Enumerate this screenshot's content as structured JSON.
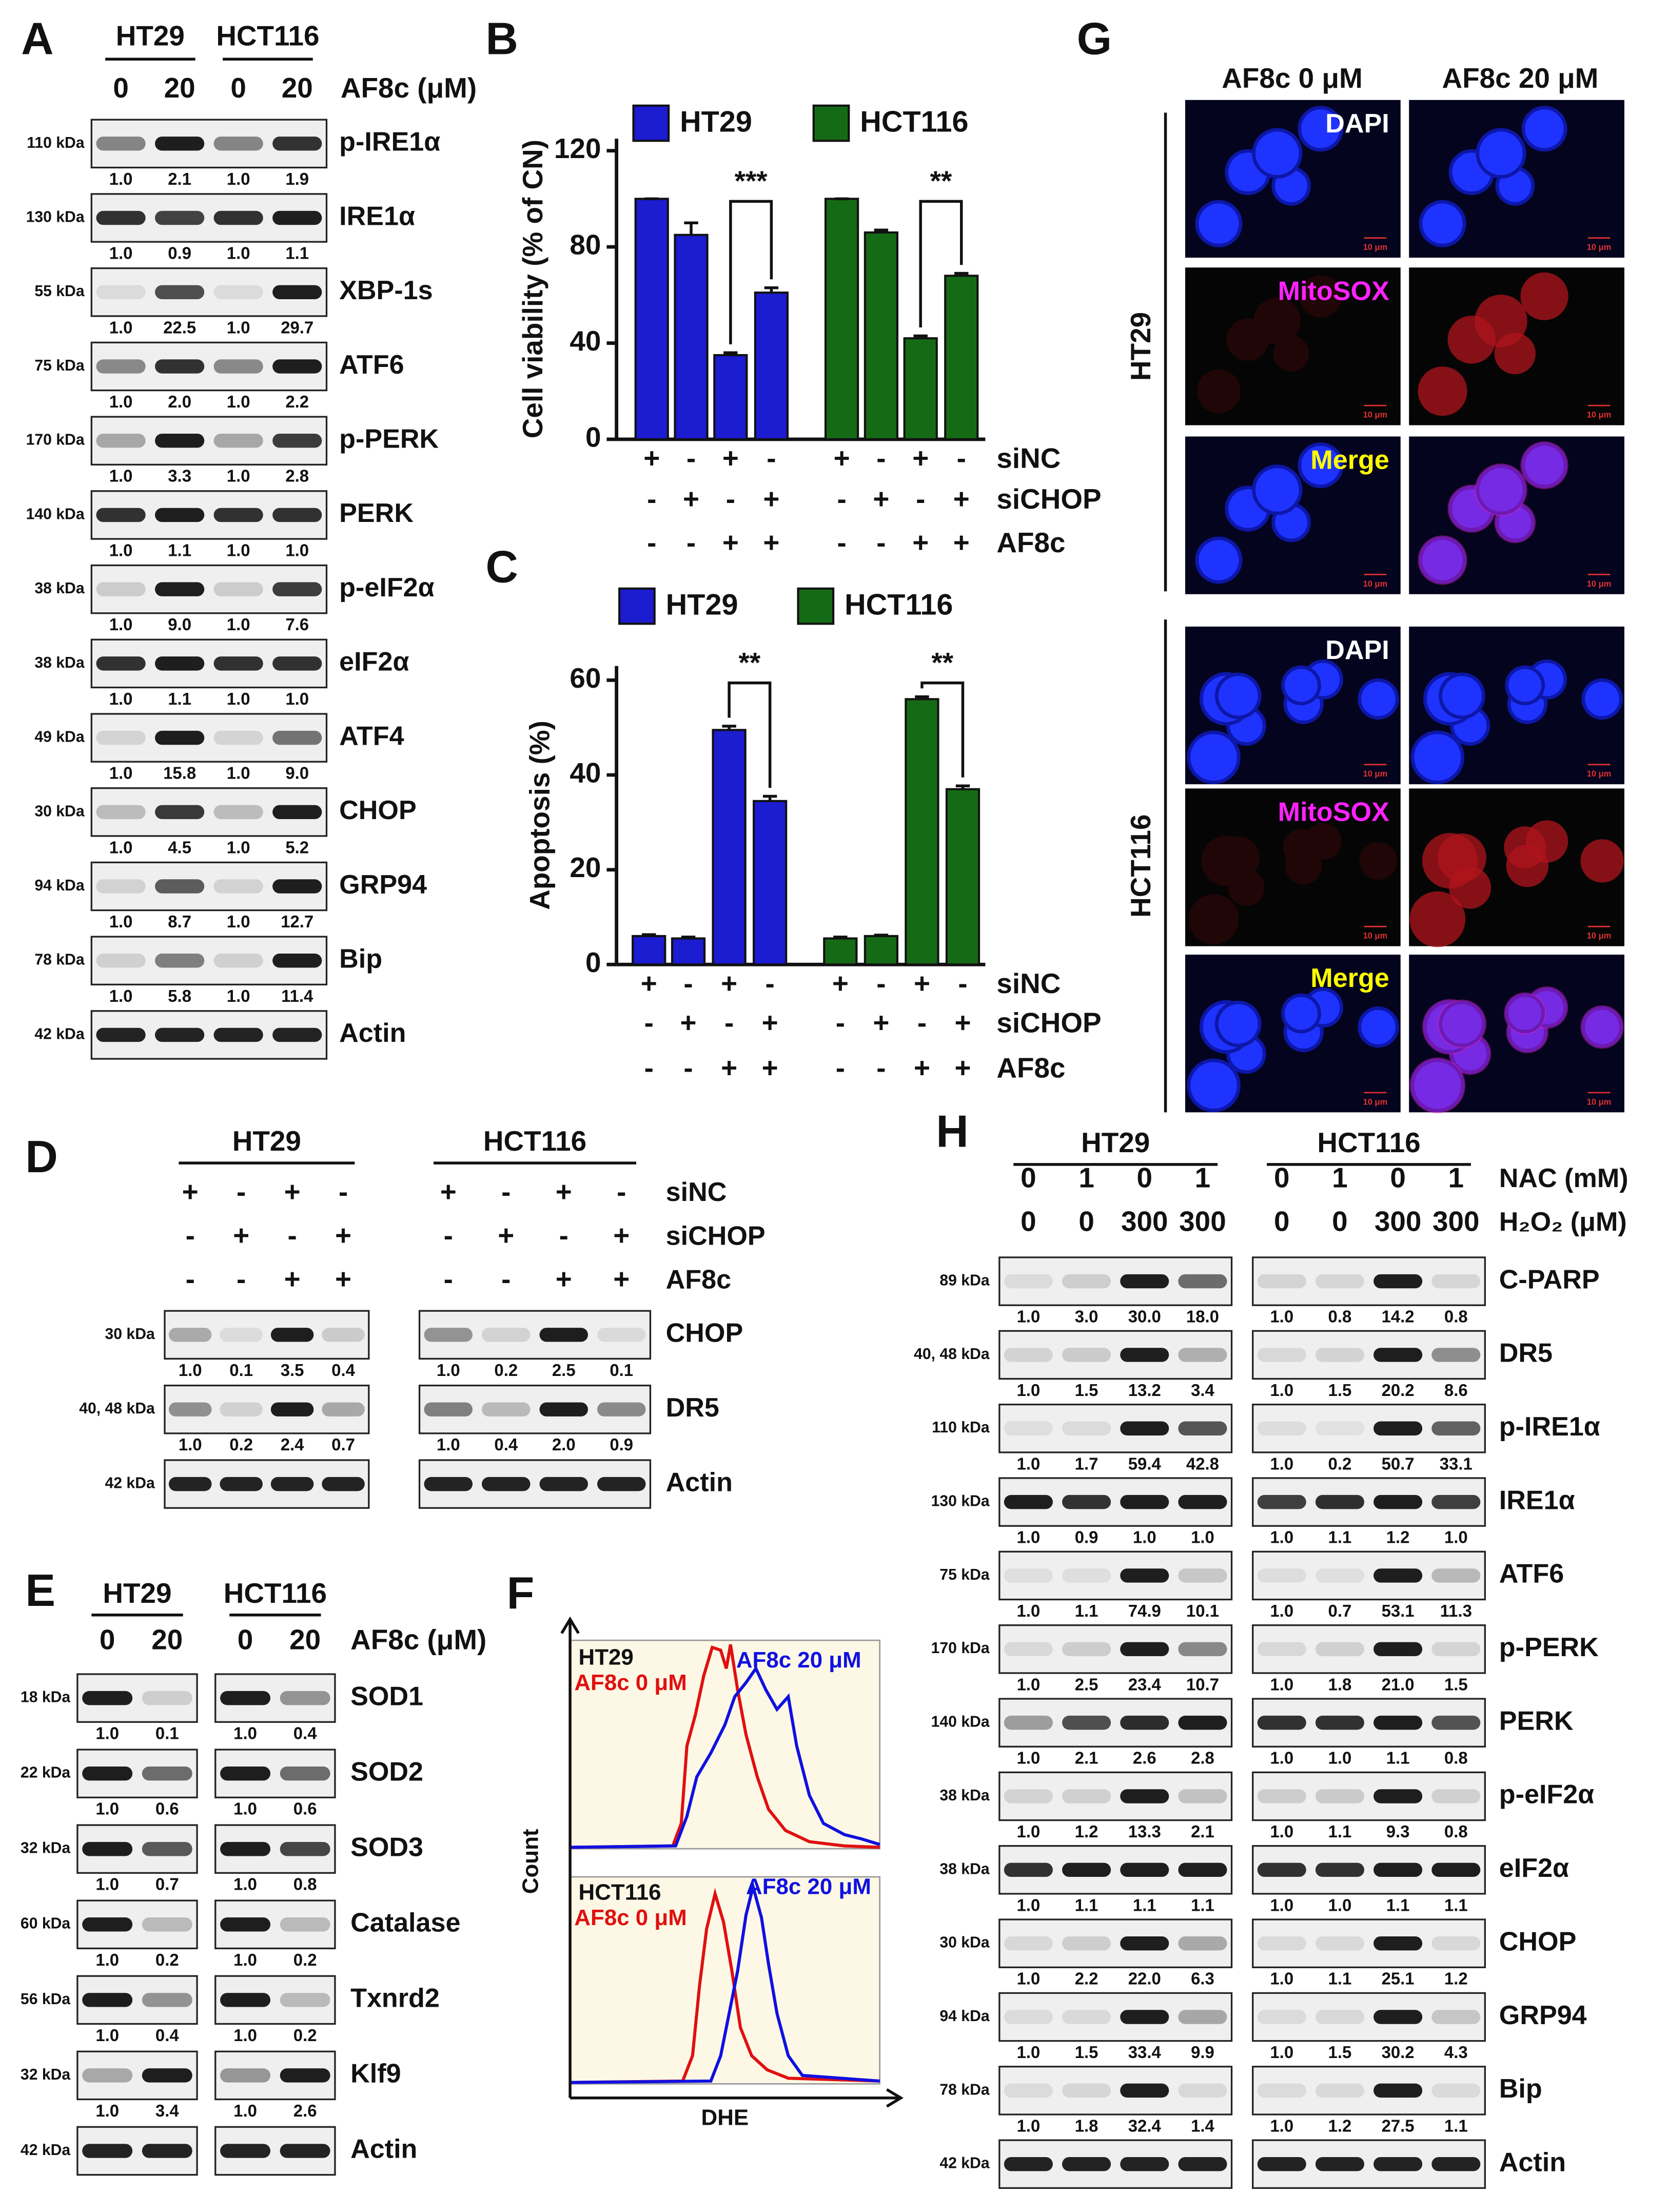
{
  "panel_A": {
    "label": "A",
    "cell_lines": [
      "HT29",
      "HCT116"
    ],
    "treatment": "AF8c (μM)",
    "doses": [
      "0",
      "20",
      "0",
      "20"
    ],
    "rows": [
      {
        "size": "110 kDa",
        "protein": "p-IRE1α",
        "quant": [
          "1.0",
          "2.1",
          "1.0",
          "1.9"
        ]
      },
      {
        "size": "130 kDa",
        "protein": "IRE1α",
        "quant": [
          "1.0",
          "0.9",
          "1.0",
          "1.1"
        ]
      },
      {
        "size": "55 kDa",
        "protein": "XBP-1s",
        "quant": [
          "1.0",
          "22.5",
          "1.0",
          "29.7"
        ]
      },
      {
        "size": "75 kDa",
        "protein": "ATF6",
        "quant": [
          "1.0",
          "2.0",
          "1.0",
          "2.2"
        ]
      },
      {
        "size": "170 kDa",
        "protein": "p-PERK",
        "quant": [
          "1.0",
          "3.3",
          "1.0",
          "2.8"
        ]
      },
      {
        "size": "140 kDa",
        "protein": "PERK",
        "quant": [
          "1.0",
          "1.1",
          "1.0",
          "1.0"
        ]
      },
      {
        "size": "38 kDa",
        "protein": "p-eIF2α",
        "quant": [
          "1.0",
          "9.0",
          "1.0",
          "7.6"
        ]
      },
      {
        "size": "38 kDa",
        "protein": "eIF2α",
        "quant": [
          "1.0",
          "1.1",
          "1.0",
          "1.0"
        ]
      },
      {
        "size": "49 kDa",
        "protein": "ATF4",
        "quant": [
          "1.0",
          "15.8",
          "1.0",
          "9.0"
        ]
      },
      {
        "size": "30 kDa",
        "protein": "CHOP",
        "quant": [
          "1.0",
          "4.5",
          "1.0",
          "5.2"
        ]
      },
      {
        "size": "94 kDa",
        "protein": "GRP94",
        "quant": [
          "1.0",
          "8.7",
          "1.0",
          "12.7"
        ]
      },
      {
        "size": "78 kDa",
        "protein": "Bip",
        "quant": [
          "1.0",
          "5.8",
          "1.0",
          "11.4"
        ]
      },
      {
        "size": "42 kDa",
        "protein": "Actin"
      }
    ]
  },
  "chart_data": [
    {
      "type": "bar",
      "label": "B",
      "y_label": "Cell viability (% of CN)",
      "ylim": [
        0,
        125
      ],
      "yticks": [
        0,
        40,
        80,
        120
      ],
      "series": [
        {
          "name": "HT29",
          "color": "#1c1cd0",
          "values": [
            100,
            85,
            35,
            61
          ],
          "errors": [
            0,
            5,
            1,
            2
          ]
        },
        {
          "name": "HCT116",
          "color": "#156b15",
          "values": [
            100,
            86,
            42,
            68
          ],
          "errors": [
            0,
            1,
            1,
            1
          ]
        }
      ],
      "conditions": [
        {
          "name": "siNC",
          "signs": [
            "+",
            "-",
            "+",
            "-"
          ]
        },
        {
          "name": "siCHOP",
          "signs": [
            "-",
            "+",
            "-",
            "+"
          ]
        },
        {
          "name": "AF8c",
          "signs": [
            "-",
            "-",
            "+",
            "+"
          ]
        }
      ],
      "significance": [
        "***",
        "**"
      ]
    },
    {
      "type": "bar",
      "label": "C",
      "y_label": "Apoptosis (%)",
      "ylim": [
        0,
        63
      ],
      "yticks": [
        0,
        20,
        40,
        60
      ],
      "series": [
        {
          "name": "HT29",
          "color": "#1c1cd0",
          "values": [
            6,
            5.5,
            49.5,
            34.5
          ],
          "errors": [
            0.3,
            0.3,
            0.8,
            1
          ]
        },
        {
          "name": "HCT116",
          "color": "#156b15",
          "values": [
            5.5,
            6,
            56,
            37
          ],
          "errors": [
            0.3,
            0.2,
            0.5,
            0.7
          ]
        }
      ],
      "conditions": [
        {
          "name": "siNC",
          "signs": [
            "+",
            "-",
            "+",
            "-"
          ]
        },
        {
          "name": "siCHOP",
          "signs": [
            "-",
            "+",
            "-",
            "+"
          ]
        },
        {
          "name": "AF8c",
          "signs": [
            "-",
            "-",
            "+",
            "+"
          ]
        }
      ],
      "significance": [
        "**",
        "**"
      ]
    }
  ],
  "panel_D": {
    "label": "D",
    "cell_lines": [
      "HT29",
      "HCT116"
    ],
    "conditions": [
      {
        "name": "siNC",
        "signs": [
          "+",
          "-",
          "+",
          "-",
          "+",
          "-",
          "+",
          "-"
        ]
      },
      {
        "name": "siCHOP",
        "signs": [
          "-",
          "+",
          "-",
          "+",
          "-",
          "+",
          "-",
          "+"
        ]
      },
      {
        "name": "AF8c",
        "signs": [
          "-",
          "-",
          "+",
          "+",
          "-",
          "-",
          "+",
          "+"
        ]
      }
    ],
    "rows": [
      {
        "size": "30 kDa",
        "protein": "CHOP",
        "quant": [
          "1.0",
          "0.1",
          "3.5",
          "0.4",
          "1.0",
          "0.2",
          "2.5",
          "0.1"
        ]
      },
      {
        "size": "40, 48 kDa",
        "protein": "DR5",
        "quant": [
          "1.0",
          "0.2",
          "2.4",
          "0.7",
          "1.0",
          "0.4",
          "2.0",
          "0.9"
        ]
      },
      {
        "size": "42 kDa",
        "protein": "Actin"
      }
    ]
  },
  "panel_E": {
    "label": "E",
    "cell_lines": [
      "HT29",
      "HCT116"
    ],
    "treatment": "AF8c (μM)",
    "doses": [
      "0",
      "20",
      "0",
      "20"
    ],
    "rows": [
      {
        "size": "18 kDa",
        "protein": "SOD1",
        "quant": [
          "1.0",
          "0.1",
          "1.0",
          "0.4"
        ]
      },
      {
        "size": "22 kDa",
        "protein": "SOD2",
        "quant": [
          "1.0",
          "0.6",
          "1.0",
          "0.6"
        ]
      },
      {
        "size": "32 kDa",
        "protein": "SOD3",
        "quant": [
          "1.0",
          "0.7",
          "1.0",
          "0.8"
        ]
      },
      {
        "size": "60 kDa",
        "protein": "Catalase",
        "quant": [
          "1.0",
          "0.2",
          "1.0",
          "0.2"
        ]
      },
      {
        "size": "56 kDa",
        "protein": "Txnrd2",
        "quant": [
          "1.0",
          "0.4",
          "1.0",
          "0.2"
        ]
      },
      {
        "size": "32 kDa",
        "protein": "Klf9",
        "quant": [
          "1.0",
          "3.4",
          "1.0",
          "2.6"
        ]
      },
      {
        "size": "42 kDa",
        "protein": "Actin"
      }
    ]
  },
  "panel_F": {
    "label": "F",
    "cell_lines": [
      "HT29",
      "HCT116"
    ],
    "conditions": [
      "AF8c 0 μM",
      "AF8c 20 μM"
    ],
    "y_label": "Count",
    "x_label": "DHE"
  },
  "panel_G": {
    "label": "G",
    "columns": [
      "AF8c 0 μM",
      "AF8c 20 μM"
    ],
    "cell_lines": [
      "HT29",
      "HCT116"
    ],
    "stains": [
      "DAPI",
      "MitoSOX",
      "Merge"
    ],
    "scale_bar": "10 μm"
  },
  "panel_H": {
    "label": "H",
    "cell_lines": [
      "HT29",
      "HCT116"
    ],
    "treatments": [
      {
        "name": "NAC (mM)",
        "levels": [
          "0",
          "1",
          "0",
          "1",
          "0",
          "1",
          "0",
          "1"
        ]
      },
      {
        "name": "H₂O₂ (μM)",
        "levels": [
          "0",
          "0",
          "300",
          "300",
          "0",
          "0",
          "300",
          "300"
        ]
      }
    ],
    "rows": [
      {
        "size": "89 kDa",
        "protein": "C-PARP",
        "quant": [
          "1.0",
          "3.0",
          "30.0",
          "18.0",
          "1.0",
          "0.8",
          "14.2",
          "0.8"
        ]
      },
      {
        "size": "40, 48 kDa",
        "protein": "DR5",
        "quant": [
          "1.0",
          "1.5",
          "13.2",
          "3.4",
          "1.0",
          "1.5",
          "20.2",
          "8.6"
        ]
      },
      {
        "size": "110 kDa",
        "protein": "p-IRE1α",
        "quant": [
          "1.0",
          "1.7",
          "59.4",
          "42.8",
          "1.0",
          "0.2",
          "50.7",
          "33.1"
        ]
      },
      {
        "size": "130 kDa",
        "protein": "IRE1α",
        "quant": [
          "1.0",
          "0.9",
          "1.0",
          "1.0",
          "1.0",
          "1.1",
          "1.2",
          "1.0"
        ]
      },
      {
        "size": "75 kDa",
        "protein": "ATF6",
        "quant": [
          "1.0",
          "1.1",
          "74.9",
          "10.1",
          "1.0",
          "0.7",
          "53.1",
          "11.3"
        ]
      },
      {
        "size": "170 kDa",
        "protein": "p-PERK",
        "quant": [
          "1.0",
          "2.5",
          "23.4",
          "10.7",
          "1.0",
          "1.8",
          "21.0",
          "1.5"
        ]
      },
      {
        "size": "140 kDa",
        "protein": "PERK",
        "quant": [
          "1.0",
          "2.1",
          "2.6",
          "2.8",
          "1.0",
          "1.0",
          "1.1",
          "0.8"
        ]
      },
      {
        "size": "38 kDa",
        "protein": "p-eIF2α",
        "quant": [
          "1.0",
          "1.2",
          "13.3",
          "2.1",
          "1.0",
          "1.1",
          "9.3",
          "0.8"
        ]
      },
      {
        "size": "38 kDa",
        "protein": "eIF2α",
        "quant": [
          "1.0",
          "1.1",
          "1.1",
          "1.1",
          "1.0",
          "1.0",
          "1.1",
          "1.1"
        ]
      },
      {
        "size": "30 kDa",
        "protein": "CHOP",
        "quant": [
          "1.0",
          "2.2",
          "22.0",
          "6.3",
          "1.0",
          "1.1",
          "25.1",
          "1.2"
        ]
      },
      {
        "size": "94 kDa",
        "protein": "GRP94",
        "quant": [
          "1.0",
          "1.5",
          "33.4",
          "9.9",
          "1.0",
          "1.5",
          "30.2",
          "4.3"
        ]
      },
      {
        "size": "78 kDa",
        "protein": "Bip",
        "quant": [
          "1.0",
          "1.8",
          "32.4",
          "1.4",
          "1.0",
          "1.2",
          "27.5",
          "1.1"
        ]
      },
      {
        "size": "42 kDa",
        "protein": "Actin"
      }
    ]
  }
}
